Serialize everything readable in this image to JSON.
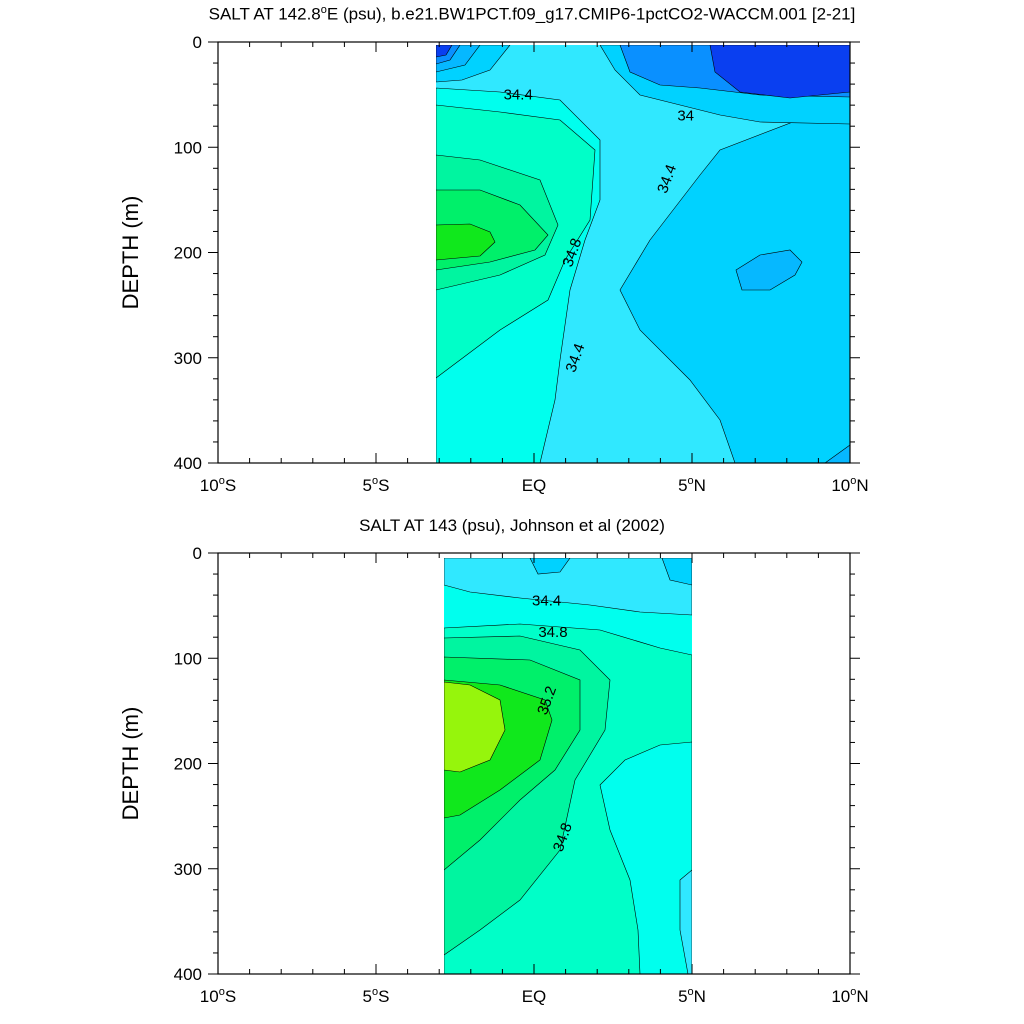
{
  "chart_data": [
    {
      "type": "contour",
      "title_parts": [
        "SALT AT 142.8",
        "o",
        "E (psu), b.e21.BW1PCT.f09_g17.CMIP6-1pctCO2-WACCM.001 [2-21]"
      ],
      "ylabel": "DEPTH (m)",
      "x_ticks": [
        {
          "value": -10,
          "label": [
            "10",
            "o",
            "S"
          ]
        },
        {
          "value": -5,
          "label": [
            "5",
            "o",
            "S"
          ]
        },
        {
          "value": 0,
          "label": [
            "EQ"
          ]
        },
        {
          "value": 5,
          "label": [
            "5",
            "o",
            "N"
          ]
        },
        {
          "value": 10,
          "label": [
            "10",
            "o",
            "N"
          ]
        }
      ],
      "y_ticks": [
        "0",
        "100",
        "200",
        "300",
        "400"
      ],
      "xlim": [
        -10,
        10
      ],
      "ylim": [
        400,
        0
      ],
      "data_extent": {
        "lat": [
          -3.1,
          10
        ],
        "depth": [
          5,
          400
        ]
      },
      "contour_labels": [
        {
          "text": "34.4",
          "lat": -0.5,
          "depth": 50
        },
        {
          "text": "34",
          "lat": 4.8,
          "depth": 70
        },
        {
          "text": "34.4",
          "lat": 4.2,
          "depth": 130
        },
        {
          "text": "34.8",
          "lat": 1.2,
          "depth": 200
        },
        {
          "text": "34.4",
          "lat": 1.3,
          "depth": 300
        }
      ]
    },
    {
      "type": "contour",
      "title_parts": [
        "SALT AT 143 (psu), Johnson et al (2002)"
      ],
      "ylabel": "DEPTH (m)",
      "x_ticks": [
        {
          "value": -10,
          "label": [
            "10",
            "o",
            "S"
          ]
        },
        {
          "value": -5,
          "label": [
            "5",
            "o",
            "S"
          ]
        },
        {
          "value": 0,
          "label": [
            "EQ"
          ]
        },
        {
          "value": 5,
          "label": [
            "5",
            "o",
            "N"
          ]
        },
        {
          "value": 10,
          "label": [
            "10",
            "o",
            "N"
          ]
        }
      ],
      "y_ticks": [
        "0",
        "100",
        "200",
        "400"
      ],
      "y_ticks_full": [
        "0",
        "100",
        "200",
        "300",
        "400"
      ],
      "xlim": [
        -10,
        10
      ],
      "ylim": [
        400,
        0
      ],
      "data_extent": {
        "lat": [
          -2.8,
          5
        ],
        "depth": [
          5,
          400
        ]
      },
      "contour_labels": [
        {
          "text": "34.4",
          "lat": 0.4,
          "depth": 45
        },
        {
          "text": "34.8",
          "lat": 0.6,
          "depth": 75
        },
        {
          "text": "35.2",
          "lat": 0.4,
          "depth": 140
        },
        {
          "text": "34.8",
          "lat": 0.9,
          "depth": 270
        }
      ]
    }
  ],
  "colors": {
    "deep_blue": "#0a3ff0",
    "blue": "#0a90ff",
    "sky": "#06b8ff",
    "light_sky": "#00d2ff",
    "cyan": "#30e8ff",
    "aqua": "#00ffee",
    "turquoise": "#00ffc8",
    "green_cyan": "#00f5a0",
    "green": "#00f06a",
    "bright_green": "#10e81c",
    "lime": "#96f50c"
  }
}
